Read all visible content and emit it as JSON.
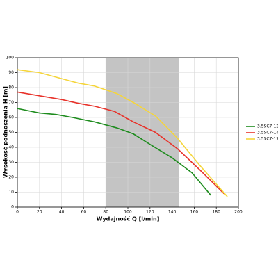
{
  "chart_data": {
    "type": "line",
    "x_label": "Wydajność Q [l/min]",
    "y_label": "Wysokość podnoszenia H [m]",
    "xlim": [
      0,
      200
    ],
    "xticks": [
      0,
      20,
      40,
      60,
      80,
      100,
      120,
      140,
      160,
      180,
      200
    ],
    "ylim": [
      0,
      100
    ],
    "yticks": [
      0,
      10,
      20,
      30,
      40,
      50,
      60,
      70,
      80,
      90,
      100
    ],
    "grid": true,
    "shaded_region": [
      80,
      146
    ],
    "shaded_color": "#c4c4c4",
    "legend": "right",
    "series": [
      {
        "name": "3.5SC7-12",
        "color": "#1e8c1e",
        "x": [
          0,
          20,
          35,
          50,
          70,
          90,
          105,
          120,
          140,
          158,
          175
        ],
        "values": [
          66,
          63,
          62,
          60,
          57,
          53,
          49,
          42,
          33,
          23,
          8
        ]
      },
      {
        "name": "3.5SC7-14",
        "color": "#e8322a",
        "x": [
          0,
          20,
          40,
          55,
          70,
          88,
          105,
          125,
          145,
          165,
          187
        ],
        "values": [
          77,
          74.5,
          72,
          69.5,
          67.5,
          64,
          57,
          50,
          39,
          25,
          9
        ]
      },
      {
        "name": "3.5SC7-17",
        "color": "#f5d53a",
        "x": [
          0,
          20,
          40,
          55,
          70,
          90,
          105,
          125,
          145,
          165,
          190
        ],
        "values": [
          92,
          90,
          86,
          83,
          81,
          76,
          70,
          61,
          46,
          28,
          7
        ]
      }
    ]
  }
}
